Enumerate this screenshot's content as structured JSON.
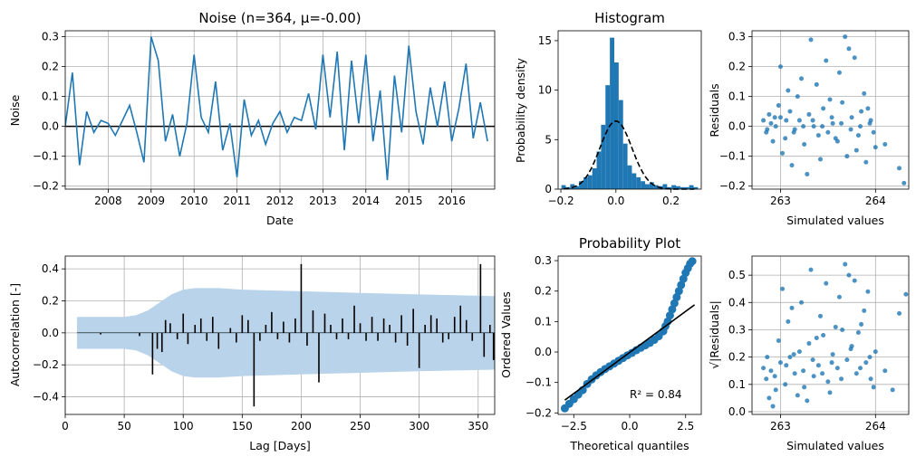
{
  "chart_data": [
    {
      "id": "noise",
      "type": "line",
      "title": "Noise (n=364, μ=-0.00)",
      "xlabel": "Date",
      "ylabel": "Noise",
      "xlim": [
        "2007-01-01",
        "2017-01-01"
      ],
      "ylim": [
        -0.21,
        0.32
      ],
      "xticks": [
        "2008",
        "2009",
        "2010",
        "2011",
        "2012",
        "2013",
        "2014",
        "2015",
        "2016"
      ],
      "yticks": [
        "-0.2",
        "-0.1",
        "0.0",
        "0.1",
        "0.2",
        "0.3"
      ],
      "grid": true,
      "hline": 0,
      "x": [
        "2007-01",
        "2007-03",
        "2007-05",
        "2007-07",
        "2007-09",
        "2007-11",
        "2008-01",
        "2008-03",
        "2008-05",
        "2008-07",
        "2008-09",
        "2008-11",
        "2009-01",
        "2009-03",
        "2009-05",
        "2009-07",
        "2009-09",
        "2009-11",
        "2010-01",
        "2010-03",
        "2010-05",
        "2010-07",
        "2010-09",
        "2010-11",
        "2011-01",
        "2011-03",
        "2011-05",
        "2011-07",
        "2011-09",
        "2011-11",
        "2012-01",
        "2012-03",
        "2012-05",
        "2012-07",
        "2012-09",
        "2012-11",
        "2013-01",
        "2013-03",
        "2013-05",
        "2013-07",
        "2013-09",
        "2013-11",
        "2014-01",
        "2014-03",
        "2014-05",
        "2014-07",
        "2014-09",
        "2014-11",
        "2015-01",
        "2015-03",
        "2015-05",
        "2015-07",
        "2015-09",
        "2015-11",
        "2016-01",
        "2016-03",
        "2016-05",
        "2016-07",
        "2016-09",
        "2016-11"
      ],
      "y": [
        0.0,
        0.18,
        -0.13,
        0.05,
        -0.02,
        0.02,
        0.01,
        -0.03,
        0.02,
        0.07,
        -0.02,
        -0.12,
        0.3,
        0.22,
        -0.05,
        0.04,
        -0.1,
        0.01,
        0.24,
        0.03,
        -0.02,
        0.15,
        -0.08,
        0.01,
        -0.17,
        0.09,
        -0.03,
        0.02,
        -0.06,
        0.01,
        0.05,
        -0.02,
        0.03,
        0.02,
        0.11,
        -0.01,
        0.24,
        0.03,
        0.25,
        -0.08,
        0.22,
        0.01,
        0.24,
        -0.05,
        0.12,
        -0.18,
        0.17,
        -0.02,
        0.27,
        0.05,
        -0.06,
        0.13,
        0.0,
        0.15,
        -0.05,
        0.06,
        0.21,
        -0.04,
        0.08,
        -0.05
      ]
    },
    {
      "id": "histogram",
      "type": "bar",
      "title": "Histogram",
      "ylabel": "Probability density",
      "xlim": [
        -0.21,
        0.31
      ],
      "ylim": [
        0,
        16
      ],
      "xticks": [
        "-0.2",
        "0.0",
        "0.2"
      ],
      "yticks": [
        "0",
        "5",
        "10",
        "15"
      ],
      "bin_width": 0.016,
      "bins": [
        -0.19,
        -0.174,
        -0.158,
        -0.142,
        -0.126,
        -0.11,
        -0.094,
        -0.078,
        -0.062,
        -0.046,
        -0.03,
        -0.014,
        0.002,
        0.018,
        0.034,
        0.05,
        0.066,
        0.082,
        0.098,
        0.114,
        0.13,
        0.146,
        0.162,
        0.178,
        0.194,
        0.21,
        0.226,
        0.242,
        0.258,
        0.274,
        0.29
      ],
      "values": [
        0.4,
        0.2,
        0.5,
        0.3,
        0.8,
        1.2,
        1.4,
        2.1,
        3.8,
        6.5,
        10.5,
        15.3,
        12.8,
        9.0,
        4.6,
        2.4,
        1.6,
        1.2,
        0.8,
        0.5,
        0.7,
        0.4,
        0.3,
        0.5,
        0.2,
        0.4,
        0.3,
        0.2,
        0.2,
        0.4,
        0.2
      ],
      "curve": {
        "mean": 0.0,
        "std": 0.058
      }
    },
    {
      "id": "residuals",
      "type": "scatter",
      "xlabel": "Simulated values",
      "ylabel": "Residuals",
      "xlim": [
        262.7,
        264.35
      ],
      "ylim": [
        -0.21,
        0.32
      ],
      "xticks": [
        "263",
        "264"
      ],
      "yticks": [
        "-0.2",
        "-0.1",
        "0.0",
        "0.1",
        "0.2",
        "0.3"
      ],
      "points": [
        [
          262.85,
          -0.02
        ],
        [
          262.9,
          0.01
        ],
        [
          262.95,
          0.0
        ],
        [
          263.0,
          0.03
        ],
        [
          263.05,
          -0.04
        ],
        [
          263.1,
          0.05
        ],
        [
          263.15,
          -0.01
        ],
        [
          263.2,
          0.02
        ],
        [
          263.25,
          -0.06
        ],
        [
          263.3,
          0.04
        ],
        [
          263.35,
          0.0
        ],
        [
          263.4,
          -0.03
        ],
        [
          263.45,
          0.06
        ],
        [
          263.5,
          -0.02
        ],
        [
          263.55,
          0.01
        ],
        [
          263.6,
          -0.05
        ],
        [
          263.65,
          0.08
        ],
        [
          263.7,
          -0.1
        ],
        [
          263.75,
          0.03
        ],
        [
          263.8,
          -0.08
        ],
        [
          263.85,
          0.05
        ],
        [
          263.9,
          -0.12
        ],
        [
          263.95,
          0.02
        ],
        [
          264.0,
          -0.07
        ],
        [
          264.1,
          -0.06
        ],
        [
          264.25,
          -0.14
        ],
        [
          264.3,
          -0.19
        ],
        [
          262.88,
          0.04
        ],
        [
          262.92,
          -0.05
        ],
        [
          262.98,
          0.07
        ],
        [
          263.02,
          -0.09
        ],
        [
          263.08,
          0.12
        ],
        [
          263.12,
          -0.13
        ],
        [
          263.18,
          0.1
        ],
        [
          263.22,
          0.16
        ],
        [
          263.28,
          -0.16
        ],
        [
          263.32,
          0.29
        ],
        [
          263.38,
          0.14
        ],
        [
          263.42,
          -0.11
        ],
        [
          263.48,
          0.22
        ],
        [
          263.52,
          0.09
        ],
        [
          263.58,
          -0.04
        ],
        [
          263.62,
          0.18
        ],
        [
          263.68,
          0.3
        ],
        [
          263.72,
          0.26
        ],
        [
          263.78,
          0.23
        ],
        [
          263.82,
          -0.03
        ],
        [
          263.88,
          0.11
        ],
        [
          263.92,
          0.06
        ],
        [
          263.98,
          -0.02
        ],
        [
          262.82,
          0.02
        ],
        [
          262.86,
          -0.01
        ],
        [
          262.94,
          0.03
        ],
        [
          263.0,
          0.2
        ],
        [
          263.06,
          0.02
        ],
        [
          263.14,
          -0.02
        ],
        [
          263.24,
          0.0
        ],
        [
          263.34,
          0.02
        ],
        [
          263.44,
          0.0
        ],
        [
          263.54,
          0.03
        ],
        [
          263.64,
          0.01
        ],
        [
          263.74,
          -0.01
        ],
        [
          263.84,
          0.0
        ],
        [
          263.94,
          0.01
        ]
      ]
    },
    {
      "id": "autocorrelation",
      "type": "bar",
      "xlabel": "Lag [Days]",
      "ylabel": "Autocorrelation [-]",
      "xlim": [
        0,
        364
      ],
      "ylim": [
        -0.51,
        0.48
      ],
      "xticks": [
        "0",
        "50",
        "100",
        "150",
        "200",
        "250",
        "300",
        "350"
      ],
      "yticks": [
        "-0.4",
        "-0.2",
        "0.0",
        "0.2",
        "0.4"
      ],
      "band": {
        "lag": [
          10,
          50,
          60,
          70,
          80,
          90,
          100,
          110,
          130,
          150,
          200,
          250,
          300,
          364
        ],
        "half_width": [
          0.1,
          0.1,
          0.11,
          0.14,
          0.19,
          0.24,
          0.27,
          0.28,
          0.28,
          0.27,
          0.26,
          0.25,
          0.24,
          0.23
        ]
      },
      "lags": [
        30,
        55,
        63,
        74,
        78,
        82,
        85,
        89,
        95,
        100,
        104,
        110,
        115,
        120,
        125,
        130,
        140,
        145,
        150,
        155,
        160,
        165,
        170,
        175,
        180,
        185,
        190,
        195,
        200,
        205,
        210,
        215,
        220,
        225,
        230,
        235,
        240,
        245,
        250,
        255,
        260,
        265,
        270,
        275,
        280,
        285,
        290,
        295,
        300,
        305,
        310,
        315,
        320,
        325,
        330,
        335,
        340,
        345,
        352,
        355,
        360,
        363
      ],
      "acf": [
        -0.01,
        0.0,
        -0.02,
        -0.26,
        -0.1,
        -0.12,
        0.08,
        0.06,
        -0.04,
        0.12,
        -0.07,
        0.05,
        0.09,
        -0.05,
        0.1,
        -0.1,
        0.03,
        -0.06,
        0.11,
        0.08,
        -0.46,
        -0.05,
        0.05,
        0.13,
        -0.04,
        0.07,
        -0.06,
        0.09,
        0.43,
        -0.08,
        0.14,
        -0.31,
        0.12,
        0.05,
        -0.04,
        0.09,
        -0.04,
        0.17,
        0.06,
        -0.05,
        0.1,
        -0.05,
        0.09,
        0.05,
        -0.06,
        0.11,
        -0.08,
        0.15,
        -0.22,
        0.05,
        0.11,
        0.09,
        -0.06,
        -0.04,
        0.1,
        0.17,
        0.08,
        -0.05,
        0.43,
        -0.15,
        0.05,
        -0.17
      ]
    },
    {
      "id": "probability_plot",
      "type": "scatter",
      "title": "Probability Plot",
      "xlabel": "Theoretical quantiles",
      "ylabel": "Ordered Values",
      "xlim": [
        -3.2,
        3.2
      ],
      "ylim": [
        -0.205,
        0.315
      ],
      "xticks": [
        "-2.5",
        "0.0",
        "2.5"
      ],
      "yticks": [
        "-0.2",
        "-0.1",
        "0.0",
        "0.1",
        "0.2",
        "0.3"
      ],
      "annotation": "R² = 0.84",
      "fit_line": {
        "x": [
          -2.9,
          2.9
        ],
        "y": [
          -0.158,
          0.155
        ]
      },
      "points": [
        [
          -2.9,
          -0.185
        ],
        [
          -2.7,
          -0.17
        ],
        [
          -2.5,
          -0.155
        ],
        [
          -2.3,
          -0.14
        ],
        [
          -2.1,
          -0.125
        ],
        [
          -1.9,
          -0.105
        ],
        [
          -1.7,
          -0.09
        ],
        [
          -1.5,
          -0.077
        ],
        [
          -1.3,
          -0.066
        ],
        [
          -1.1,
          -0.056
        ],
        [
          -0.9,
          -0.047
        ],
        [
          -0.7,
          -0.038
        ],
        [
          -0.5,
          -0.029
        ],
        [
          -0.3,
          -0.02
        ],
        [
          -0.1,
          -0.011
        ],
        [
          0.1,
          -0.003
        ],
        [
          0.3,
          0.006
        ],
        [
          0.5,
          0.014
        ],
        [
          0.7,
          0.022
        ],
        [
          0.9,
          0.03
        ],
        [
          1.1,
          0.04
        ],
        [
          1.3,
          0.052
        ],
        [
          1.5,
          0.068
        ],
        [
          1.6,
          0.085
        ],
        [
          1.7,
          0.1
        ],
        [
          1.8,
          0.12
        ],
        [
          1.9,
          0.14
        ],
        [
          2.0,
          0.16
        ],
        [
          2.1,
          0.18
        ],
        [
          2.2,
          0.2
        ],
        [
          2.3,
          0.22
        ],
        [
          2.4,
          0.24
        ],
        [
          2.5,
          0.26
        ],
        [
          2.6,
          0.275
        ],
        [
          2.7,
          0.29
        ],
        [
          2.8,
          0.298
        ]
      ]
    },
    {
      "id": "sqrt_residuals",
      "type": "scatter",
      "xlabel": "Simulated values",
      "ylabel": "√|Residuals|",
      "xlim": [
        262.7,
        264.35
      ],
      "ylim": [
        -0.01,
        0.57
      ],
      "xticks": [
        "263",
        "264"
      ],
      "yticks": [
        "0.0",
        "0.1",
        "0.2",
        "0.3",
        "0.4",
        "0.5"
      ],
      "points": [
        [
          262.85,
          0.12
        ],
        [
          262.9,
          0.15
        ],
        [
          262.95,
          0.08
        ],
        [
          263.0,
          0.18
        ],
        [
          263.05,
          0.1
        ],
        [
          263.1,
          0.2
        ],
        [
          263.15,
          0.14
        ],
        [
          263.2,
          0.22
        ],
        [
          263.25,
          0.09
        ],
        [
          263.3,
          0.25
        ],
        [
          263.35,
          0.13
        ],
        [
          263.4,
          0.17
        ],
        [
          263.45,
          0.28
        ],
        [
          263.5,
          0.11
        ],
        [
          263.55,
          0.21
        ],
        [
          263.6,
          0.16
        ],
        [
          263.65,
          0.3
        ],
        [
          263.7,
          0.19
        ],
        [
          263.75,
          0.24
        ],
        [
          263.8,
          0.14
        ],
        [
          263.85,
          0.32
        ],
        [
          263.9,
          0.18
        ],
        [
          263.95,
          0.12
        ],
        [
          264.0,
          0.22
        ],
        [
          264.1,
          0.15
        ],
        [
          264.25,
          0.36
        ],
        [
          264.32,
          0.43
        ],
        [
          262.88,
          0.05
        ],
        [
          262.92,
          0.02
        ],
        [
          262.98,
          0.26
        ],
        [
          263.02,
          0.45
        ],
        [
          263.08,
          0.33
        ],
        [
          263.12,
          0.38
        ],
        [
          263.18,
          0.06
        ],
        [
          263.22,
          0.4
        ],
        [
          263.28,
          0.04
        ],
        [
          263.32,
          0.52
        ],
        [
          263.38,
          0.27
        ],
        [
          263.42,
          0.35
        ],
        [
          263.48,
          0.47
        ],
        [
          263.52,
          0.07
        ],
        [
          263.58,
          0.31
        ],
        [
          263.62,
          0.42
        ],
        [
          263.68,
          0.54
        ],
        [
          263.72,
          0.5
        ],
        [
          263.78,
          0.48
        ],
        [
          263.82,
          0.29
        ],
        [
          263.88,
          0.37
        ],
        [
          263.92,
          0.44
        ],
        [
          263.98,
          0.09
        ],
        [
          262.82,
          0.16
        ],
        [
          262.86,
          0.2
        ],
        [
          262.94,
          0.13
        ],
        [
          263.06,
          0.17
        ],
        [
          263.14,
          0.21
        ],
        [
          263.24,
          0.15
        ],
        [
          263.34,
          0.19
        ],
        [
          263.44,
          0.14
        ],
        [
          263.54,
          0.18
        ],
        [
          263.64,
          0.12
        ],
        [
          263.74,
          0.23
        ],
        [
          263.84,
          0.16
        ],
        [
          263.94,
          0.2
        ],
        [
          264.18,
          0.08
        ]
      ]
    }
  ]
}
